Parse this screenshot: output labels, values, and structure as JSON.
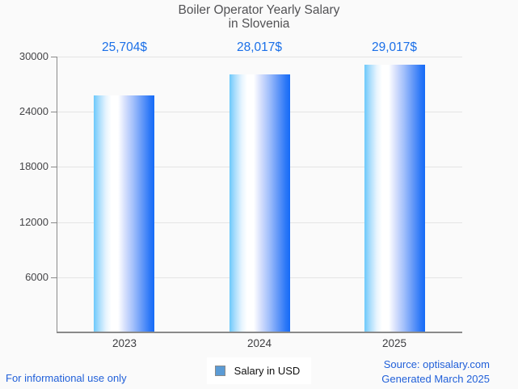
{
  "title": {
    "lines": [
      "Boiler Operator Yearly Salary",
      "in Slovenia"
    ]
  },
  "chart_data": {
    "type": "bar",
    "title": "Boiler Operator Yearly Salary in Slovenia",
    "categories": [
      "2023",
      "2024",
      "2025"
    ],
    "series": [
      {
        "name": "Salary in USD",
        "values": [
          25704,
          28017,
          29017
        ]
      }
    ],
    "value_labels": [
      "25,704$",
      "28,017$",
      "29,017$"
    ],
    "ylim": [
      0,
      30000
    ],
    "yticks": [
      6000,
      12000,
      18000,
      24000,
      30000
    ],
    "ytick_labels": [
      "6000",
      "12000",
      "18000",
      "24000",
      "30000"
    ],
    "grid": true,
    "legend_position": "bottom",
    "xlabel": "",
    "ylabel": ""
  },
  "legend": {
    "items": [
      {
        "label": "Salary in USD",
        "swatch_color": "#5b9bd5"
      }
    ]
  },
  "footer": {
    "disclaimer": "For informational use only",
    "source": "Source: optisalary.com",
    "generated": "Generated March 2025"
  },
  "colors": {
    "value_label": "#1a6fe8",
    "link_text": "#2160d9",
    "title_text": "#525255",
    "bar_gradient_left": "#6cc9fb",
    "bar_gradient_mid": "#ffffff",
    "bar_gradient_right": "#156bf7",
    "axis": "#8a8a8a",
    "grid": "#e4e4e4",
    "legend_swatch": "#5b9bd5",
    "background": "#fafafa"
  }
}
